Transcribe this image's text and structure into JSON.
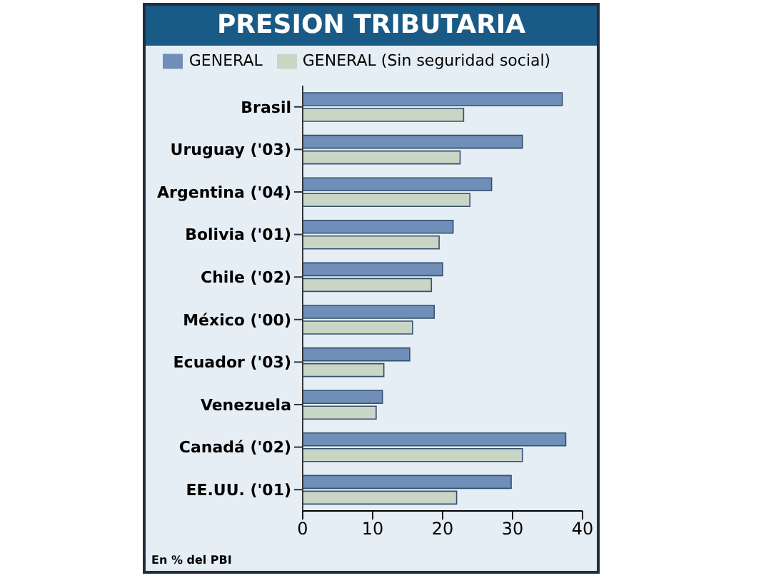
{
  "chart_data": {
    "type": "bar",
    "orientation": "horizontal",
    "title": "PRESION TRIBUTARIA",
    "categories": [
      "Brasil",
      "Uruguay ('03)",
      "Argentina ('04)",
      "Bolivia ('01)",
      "Chile ('02)",
      "México ('00)",
      "Ecuador ('03)",
      "Venezuela",
      "Canadá ('02)",
      "EE.UU. ('01)"
    ],
    "series": [
      {
        "name": "GENERAL",
        "color": "#6f8fb8",
        "values": [
          37.1,
          31.4,
          27,
          21.5,
          20,
          18.8,
          15.3,
          11.4,
          37.6,
          29.8
        ]
      },
      {
        "name": "GENERAL (Sin seguridad social)",
        "color": "#c9d5c5",
        "values": [
          23,
          22.5,
          23.9,
          19.5,
          18.4,
          15.7,
          11.6,
          10.5,
          31.4,
          22
        ]
      }
    ],
    "xlim": [
      0,
      40
    ],
    "xticks": [
      0,
      10,
      20,
      30,
      40
    ],
    "legend": "top",
    "grid": false,
    "annotations": [
      "En % del PBI"
    ]
  }
}
